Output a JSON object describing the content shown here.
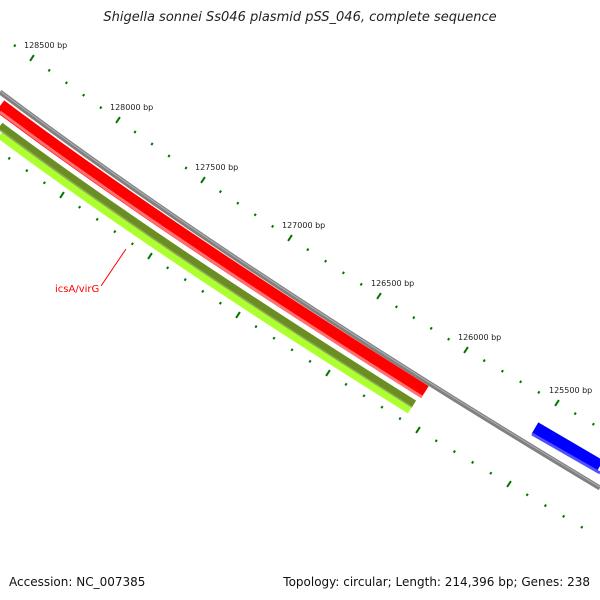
{
  "title": "Shigella sonnei Ss046 plasmid pSS_046, complete sequence",
  "footer": {
    "accession": "Accession: NC_007385",
    "topology": "Topology: circular; Length: 214,396 bp; Genes: 238"
  },
  "tick_labels": [
    "128500 bp",
    "128000 bp",
    "127500 bp",
    "127000 bp",
    "126500 bp",
    "126000 bp",
    "125500 bp"
  ],
  "feature_label": "icsA/virG",
  "colors": {
    "backbone": "#808080",
    "forward_gene": "#ff0000",
    "reverse_gene": "#0000ff",
    "olive": "#6b8e23",
    "lime": "#adff2f",
    "ticks": "#007700",
    "label": "#ff0000"
  }
}
